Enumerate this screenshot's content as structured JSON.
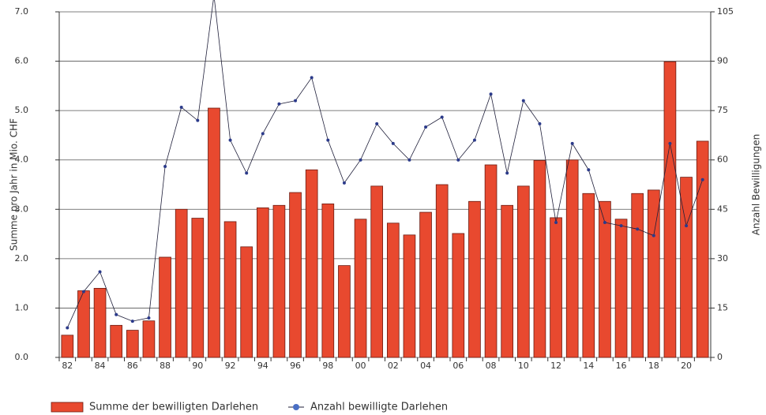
{
  "chart_data": {
    "type": "bar-line",
    "y_label": "Summe pro Jahr in Mio. CHF",
    "y2_label": "Anzahl Bewilligungen",
    "categories": [
      "82",
      null,
      "84",
      null,
      "86",
      null,
      "88",
      null,
      "90",
      null,
      "92",
      null,
      "94",
      null,
      "96",
      null,
      "98",
      null,
      "00",
      null,
      "02",
      null,
      "04",
      null,
      "06",
      null,
      "08",
      null,
      "10",
      null,
      "12",
      null,
      "14",
      null,
      "16",
      null,
      "18",
      null,
      "20",
      null
    ],
    "series": [
      {
        "name": "Summe der bewilligten Darlehen",
        "type": "bar",
        "color": "#e8492f",
        "values": [
          0.45,
          1.35,
          1.4,
          0.65,
          0.55,
          0.74,
          2.03,
          3.0,
          2.82,
          5.05,
          2.75,
          2.24,
          3.03,
          3.08,
          3.34,
          3.8,
          3.11,
          1.86,
          2.8,
          3.47,
          2.72,
          2.48,
          2.94,
          3.5,
          2.51,
          3.16,
          3.9,
          3.08,
          3.47,
          3.99,
          2.83,
          4.0,
          3.32,
          3.16,
          2.8,
          3.32,
          3.39,
          5.99,
          3.65,
          4.38
        ]
      },
      {
        "name": "Anzahl bewilligte Darlehen",
        "type": "line",
        "axis": "y2",
        "color": "#2b3a8a",
        "values": [
          9,
          20,
          26,
          13,
          11,
          12,
          58,
          76,
          72,
          110,
          66,
          56,
          68,
          77,
          78,
          85,
          66,
          53,
          60,
          71,
          65,
          60,
          70,
          73,
          60,
          66,
          80,
          56,
          78,
          71,
          41,
          65,
          57,
          41,
          40,
          39,
          37,
          65,
          40,
          54
        ]
      }
    ],
    "ylim": [
      0,
      7
    ],
    "yticks": [
      {
        "value": 0,
        "label": "0.0"
      },
      {
        "value": 1,
        "label": "1.0"
      },
      {
        "value": 2,
        "label": "2.0"
      },
      {
        "value": 3,
        "label": "3.0"
      },
      {
        "value": 4,
        "label": "4.0"
      },
      {
        "value": 5,
        "label": "5.0"
      },
      {
        "value": 6,
        "label": "6.0"
      },
      {
        "value": 7,
        "label": "7.0"
      }
    ],
    "y2lim": [
      0,
      105
    ],
    "y2ticks": [
      0,
      15,
      30,
      45,
      60,
      75,
      90,
      105
    ],
    "grid": true
  }
}
